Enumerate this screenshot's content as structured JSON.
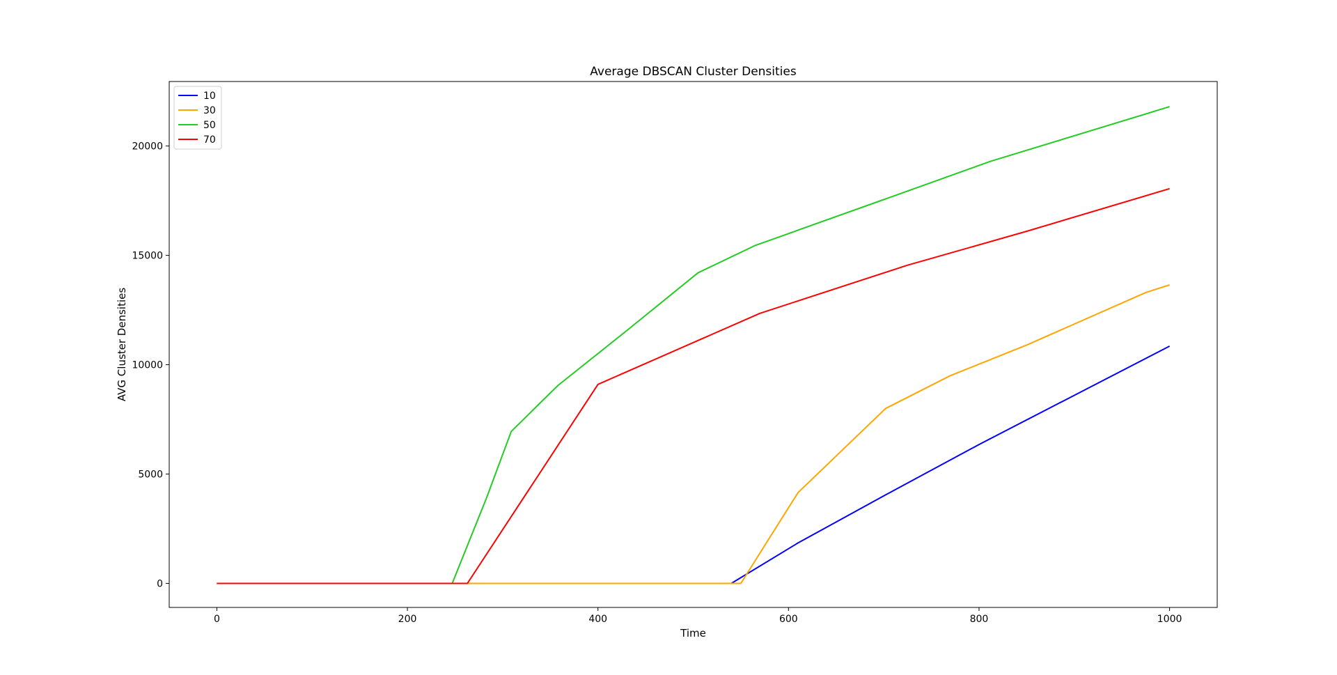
{
  "chart_data": {
    "type": "line",
    "title": "Average DBSCAN Cluster Densities",
    "xlabel": "Time",
    "ylabel": "AVG Cluster Densities",
    "xlim": [
      -50,
      1050
    ],
    "ylim": [
      -1100,
      22950
    ],
    "xticks": [
      0,
      200,
      400,
      600,
      800,
      1000
    ],
    "yticks": [
      0,
      5000,
      10000,
      15000,
      20000
    ],
    "grid": false,
    "legend_position": "top-left",
    "series": [
      {
        "name": "10",
        "color": "#0000ff",
        "points": [
          [
            0,
            0
          ],
          [
            540,
            0
          ],
          [
            610,
            1850
          ],
          [
            700,
            4000
          ],
          [
            800,
            6350
          ],
          [
            900,
            8600
          ],
          [
            1000,
            10850
          ]
        ]
      },
      {
        "name": "30",
        "color": "#ffa500",
        "points": [
          [
            0,
            0
          ],
          [
            550,
            0
          ],
          [
            610,
            4150
          ],
          [
            702,
            8000
          ],
          [
            770,
            9500
          ],
          [
            850,
            10900
          ],
          [
            975,
            13300
          ],
          [
            1000,
            13650
          ]
        ]
      },
      {
        "name": "50",
        "color": "#22cc22",
        "points": [
          [
            0,
            0
          ],
          [
            247,
            0
          ],
          [
            283,
            3900
          ],
          [
            309,
            6950
          ],
          [
            358,
            9050
          ],
          [
            430,
            11550
          ],
          [
            505,
            14200
          ],
          [
            565,
            15450
          ],
          [
            700,
            17550
          ],
          [
            812,
            19300
          ],
          [
            1000,
            21800
          ]
        ]
      },
      {
        "name": "70",
        "color": "#ff0000",
        "points": [
          [
            0,
            0
          ],
          [
            263,
            0
          ],
          [
            400,
            9100
          ],
          [
            570,
            12350
          ],
          [
            725,
            14550
          ],
          [
            850,
            16100
          ],
          [
            1000,
            18050
          ]
        ]
      }
    ]
  }
}
